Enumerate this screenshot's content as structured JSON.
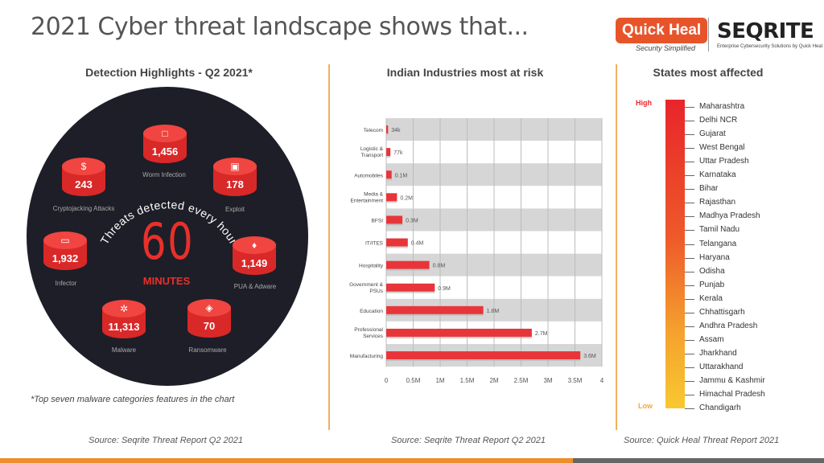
{
  "header": {
    "title": "2021 Cyber threat landscape shows that...",
    "quickheal_logo": "Quick Heal",
    "quickheal_tagline": "Security Simplified",
    "seqrite_logo": "SEQRITE",
    "seqrite_tagline": "Enterprise Cybersecurity Solutions by Quick Heal"
  },
  "detection": {
    "title": "Detection Highlights - Q2 2021*",
    "center_arc_text": "Threats detected every hour",
    "center_value": "60",
    "center_unit": "MINUTES",
    "footnote": "*Top seven malware categories features in the chart",
    "source": "Source: Seqrite Threat Report Q2 2021",
    "categories": [
      {
        "label": "Worm Infection",
        "value": "1,456",
        "icon": "window-icon"
      },
      {
        "label": "Exploit",
        "value": "178",
        "icon": "briefcase-icon"
      },
      {
        "label": "PUA & Adware",
        "value": "1,149",
        "icon": "shield-icon"
      },
      {
        "label": "Ransomware",
        "value": "70",
        "icon": "lock-icon"
      },
      {
        "label": "Malware",
        "value": "11,313",
        "icon": "bug-icon"
      },
      {
        "label": "Infector",
        "value": "1,932",
        "icon": "monitor-icon"
      },
      {
        "label": "Cryptojacking Attacks",
        "value": "243",
        "icon": "dollar-icon"
      }
    ],
    "colors": {
      "circle": "#1d1e28",
      "accent": "#e8302a"
    }
  },
  "chart_data": {
    "type": "bar",
    "orientation": "horizontal",
    "title": "Indian Industries most at risk",
    "categories": [
      "Telecom",
      "Logistic & Transport",
      "Automobiles",
      "Media & Entertainment",
      "BFSI",
      "IT/ITES",
      "Hospitality",
      "Government & PSUs",
      "Education",
      "Professional Services",
      "Manufacturing"
    ],
    "values": [
      34000,
      77000,
      100000,
      200000,
      300000,
      400000,
      800000,
      900000,
      1800000,
      2700000,
      3600000
    ],
    "data_labels": [
      "34k",
      "77k",
      "0.1M",
      "0.2M",
      "0.3M",
      "0.4M",
      "0.8M",
      "0.9M",
      "1.8M",
      "2.7M",
      "3.6M"
    ],
    "x_ticks": [
      "0",
      "0.5M",
      "1M",
      "1.5M",
      "2M",
      "2.5M",
      "3M",
      "3.5M",
      "4"
    ],
    "xlim": [
      0,
      4000000
    ],
    "grid": "alternating row bands",
    "bar_color": "#e8353a",
    "source": "Source: Seqrite Threat Report Q2 2021"
  },
  "states": {
    "title": "States most affected",
    "high_label": "High",
    "low_label": "Low",
    "items": [
      "Maharashtra",
      "Delhi NCR",
      "Gujarat",
      "West Bengal",
      "Uttar Pradesh",
      "Karnataka",
      "Bihar",
      "Rajasthan",
      "Madhya Pradesh",
      "Tamil Nadu",
      "Telangana",
      "Haryana",
      "Odisha",
      "Punjab",
      "Kerala",
      "Chhattisgarh",
      "Andhra Pradesh",
      "Assam",
      "Jharkhand",
      "Uttarakhand",
      "Jammu & Kashmir",
      "Himachal Pradesh",
      "Chandigarh"
    ],
    "source": "Source: Quick Heal Threat Report 2021"
  }
}
